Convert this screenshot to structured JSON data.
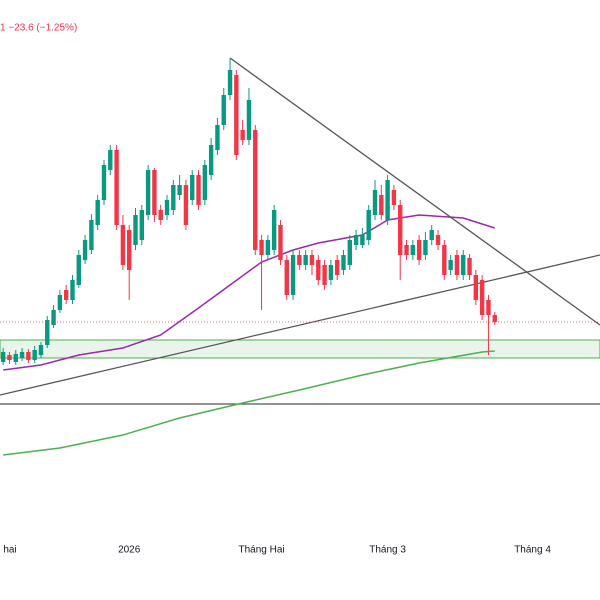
{
  "chart_data": {
    "type": "candlestick",
    "subtitle": "1  −23.6 (−1.25%)",
    "categories": [
      "hai",
      null,
      null,
      null,
      null,
      null,
      null,
      null,
      null,
      null,
      null,
      null,
      null,
      null,
      null,
      null,
      null,
      null,
      null,
      null,
      "2026",
      null,
      null,
      null,
      null,
      null,
      null,
      null,
      null,
      null,
      null,
      null,
      null,
      null,
      null,
      null,
      null,
      null,
      null,
      null,
      null,
      "Tháng Hai",
      null,
      null,
      null,
      null,
      null,
      null,
      null,
      null,
      null,
      null,
      null,
      null,
      null,
      null,
      null,
      null,
      null,
      null,
      null,
      "Tháng 3",
      null,
      null,
      null,
      null,
      null,
      null,
      null,
      null,
      null,
      null,
      null,
      null,
      null,
      null,
      null,
      null,
      null,
      null,
      null,
      null,
      null,
      null,
      "Tháng 4"
    ],
    "open": [
      238,
      245,
      238,
      242,
      248,
      240,
      245,
      255,
      275,
      290,
      310,
      300,
      315,
      340,
      350,
      375,
      400,
      430,
      450,
      375,
      370,
      355,
      360,
      385,
      430,
      390,
      385,
      390,
      405,
      415,
      400,
      425,
      400,
      425,
      450,
      475,
      505,
      525,
      470,
      460,
      470,
      360,
      345,
      350,
      375,
      340,
      305,
      345,
      335,
      345,
      340,
      335,
      320,
      340,
      330,
      335,
      355,
      355,
      360,
      385,
      405,
      380,
      410,
      395,
      355,
      345,
      360,
      345,
      360,
      365,
      355,
      330,
      345,
      325,
      342,
      325,
      320,
      300,
      285,
      null,
      null,
      null,
      null,
      null,
      null
    ],
    "high": [
      252,
      248,
      250,
      252,
      251,
      254,
      258,
      284,
      295,
      310,
      315,
      325,
      350,
      365,
      386,
      405,
      440,
      455,
      455,
      385,
      375,
      392,
      395,
      435,
      432,
      395,
      405,
      420,
      425,
      420,
      430,
      430,
      440,
      462,
      482,
      512,
      542,
      530,
      480,
      512,
      475,
      365,
      365,
      395,
      380,
      345,
      350,
      350,
      350,
      350,
      345,
      340,
      340,
      345,
      350,
      365,
      370,
      372,
      395,
      420,
      415,
      425,
      415,
      400,
      360,
      360,
      365,
      368,
      375,
      370,
      360,
      345,
      350,
      350,
      346,
      330,
      325,
      305,
      288,
      null,
      null,
      null,
      null,
      null,
      null
    ],
    "low": [
      235,
      236,
      235,
      239,
      237,
      237,
      242,
      252,
      272,
      287,
      296,
      296,
      312,
      336,
      346,
      370,
      395,
      425,
      370,
      330,
      300,
      350,
      355,
      380,
      378,
      375,
      380,
      385,
      400,
      370,
      395,
      390,
      395,
      420,
      445,
      470,
      500,
      440,
      455,
      455,
      345,
      290,
      340,
      345,
      335,
      300,
      300,
      330,
      330,
      325,
      315,
      310,
      315,
      320,
      325,
      330,
      350,
      352,
      355,
      380,
      380,
      375,
      390,
      320,
      340,
      340,
      335,
      340,
      355,
      350,
      320,
      325,
      320,
      320,
      320,
      295,
      280,
      245,
      275,
      null,
      null,
      null,
      null,
      null,
      null
    ],
    "close": [
      248,
      240,
      246,
      248,
      240,
      250,
      255,
      280,
      290,
      305,
      300,
      320,
      345,
      360,
      380,
      400,
      435,
      450,
      375,
      335,
      330,
      385,
      390,
      430,
      385,
      380,
      400,
      415,
      415,
      375,
      425,
      395,
      435,
      455,
      475,
      505,
      530,
      445,
      460,
      500,
      350,
      345,
      360,
      390,
      340,
      305,
      345,
      335,
      345,
      335,
      320,
      315,
      335,
      325,
      345,
      360,
      365,
      365,
      390,
      410,
      385,
      420,
      395,
      345,
      345,
      355,
      340,
      360,
      370,
      355,
      325,
      340,
      325,
      345,
      325,
      300,
      285,
      285,
      278,
      null,
      null,
      null,
      null,
      null,
      null
    ],
    "up_color": "#089981",
    "down_color": "#f23645",
    "xlim": [
      -0.5,
      94.7
    ],
    "ylim": [
      0,
      600
    ],
    "moving_averages": [
      {
        "color": "#9c27b0",
        "x": [
          0,
          6,
          12,
          19,
          25,
          31,
          36,
          41,
          46,
          50,
          57,
          61,
          66,
          73,
          78
        ],
        "values": [
          230,
          235,
          245,
          252,
          265,
          292,
          315,
          338,
          350,
          357,
          365,
          380,
          385,
          382,
          372
        ]
      },
      {
        "color": "#4caf50",
        "x": [
          0,
          9,
          19,
          28,
          38,
          47,
          57,
          66,
          76,
          78
        ],
        "values": [
          145,
          152,
          165,
          182,
          197,
          210,
          225,
          237,
          248,
          249
        ]
      }
    ],
    "trend_lines": [
      {
        "color": "#555555",
        "x": [
          36,
          94.7
        ],
        "values": [
          542,
          275
        ]
      },
      {
        "color": "#555555",
        "x": [
          -0.5,
          94.7
        ],
        "values": [
          205,
          345
        ]
      }
    ],
    "horizontal_lines": [
      {
        "color": "#555555",
        "value": 196
      }
    ],
    "zone": {
      "color": "#4caf50",
      "range": [
        242,
        260
      ]
    },
    "last_price_line": true
  }
}
